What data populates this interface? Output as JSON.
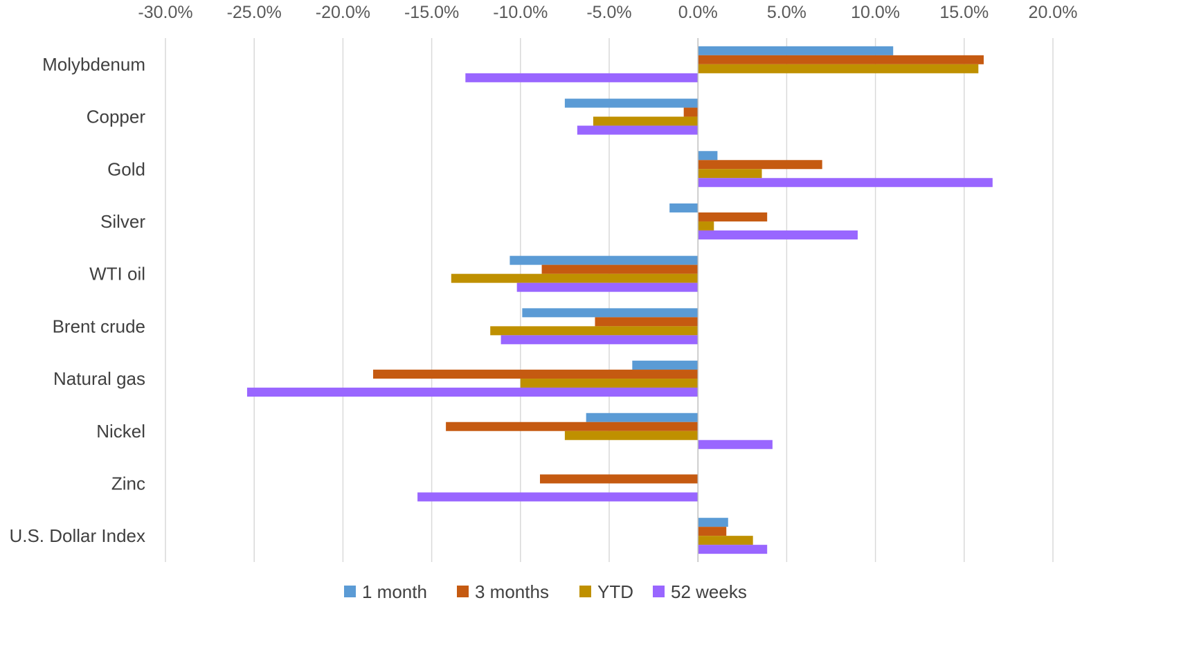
{
  "chart_data": {
    "type": "bar",
    "orientation": "horizontal",
    "categories": [
      "Molybdenum",
      "Copper",
      "Gold",
      "Silver",
      "WTI oil",
      "Brent crude",
      "Natural gas",
      "Nickel",
      "Zinc",
      "U.S. Dollar Index"
    ],
    "series": [
      {
        "name": "1 month",
        "color": "#5b9bd5",
        "values": [
          11.0,
          -7.5,
          1.1,
          -1.6,
          -10.6,
          -9.9,
          -3.7,
          -6.3,
          0.0,
          1.7
        ]
      },
      {
        "name": "3 months",
        "color": "#c55a11",
        "values": [
          16.1,
          -0.8,
          7.0,
          3.9,
          -8.8,
          -5.8,
          -18.3,
          -14.2,
          -8.9,
          1.6
        ]
      },
      {
        "name": "YTD",
        "color": "#bf9000",
        "values": [
          15.8,
          -5.9,
          3.6,
          0.9,
          -13.9,
          -11.7,
          -10.0,
          -7.5,
          0.0,
          3.1
        ]
      },
      {
        "name": "52 weeks",
        "color": "#9966ff",
        "values": [
          -13.1,
          -6.8,
          16.6,
          9.0,
          -10.2,
          -11.1,
          -25.4,
          4.2,
          -15.8,
          3.9
        ]
      }
    ],
    "xlim": [
      -30,
      20
    ],
    "ticks": [
      {
        "value": -30,
        "label": "-30.0%"
      },
      {
        "value": -25,
        "label": "-25.0%"
      },
      {
        "value": -20,
        "label": "-20.0%"
      },
      {
        "value": -15,
        "label": "-15.0%"
      },
      {
        "value": -10,
        "label": "-10.0%"
      },
      {
        "value": -5,
        "label": "-5.0%"
      },
      {
        "value": 0,
        "label": "0.0%"
      },
      {
        "value": 5,
        "label": "5.0%"
      },
      {
        "value": 10,
        "label": "10.0%"
      },
      {
        "value": 15,
        "label": "15.0%"
      },
      {
        "value": 20,
        "label": "20.0%"
      }
    ],
    "axis_position": "top",
    "grid": true,
    "legend_position": "bottom",
    "gridline_color": "#d9d9d9",
    "axis_line_color": "#bfbfbf"
  }
}
